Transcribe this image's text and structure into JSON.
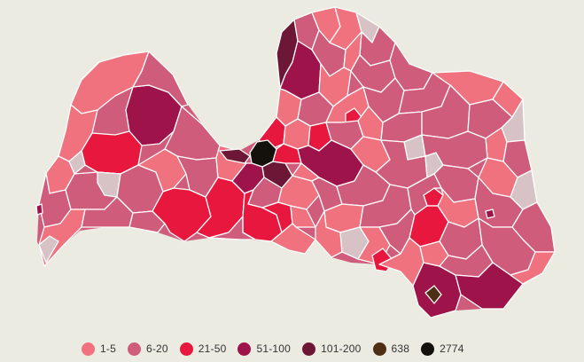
{
  "map": {
    "country": "Latvia",
    "colors": {
      "none": "#d7c2c6",
      "c1": "#f0727e",
      "c2": "#cf5c7a",
      "c3": "#e8173e",
      "c4": "#9e1349",
      "c5": "#6c1736",
      "c6": "#4e2f14",
      "c7": "#14100b",
      "border": "#ffffff",
      "background": "#ecebe2"
    }
  },
  "legend": [
    {
      "label": "1-5",
      "color": "#f0727e"
    },
    {
      "label": "6-20",
      "color": "#cf5c7a"
    },
    {
      "label": "21-50",
      "color": "#e8173e"
    },
    {
      "label": "51-100",
      "color": "#9e1349"
    },
    {
      "label": "101-200",
      "color": "#6c1736"
    },
    {
      "label": "638",
      "color": "#4e2f14"
    },
    {
      "label": "2774",
      "color": "#14100b"
    }
  ]
}
